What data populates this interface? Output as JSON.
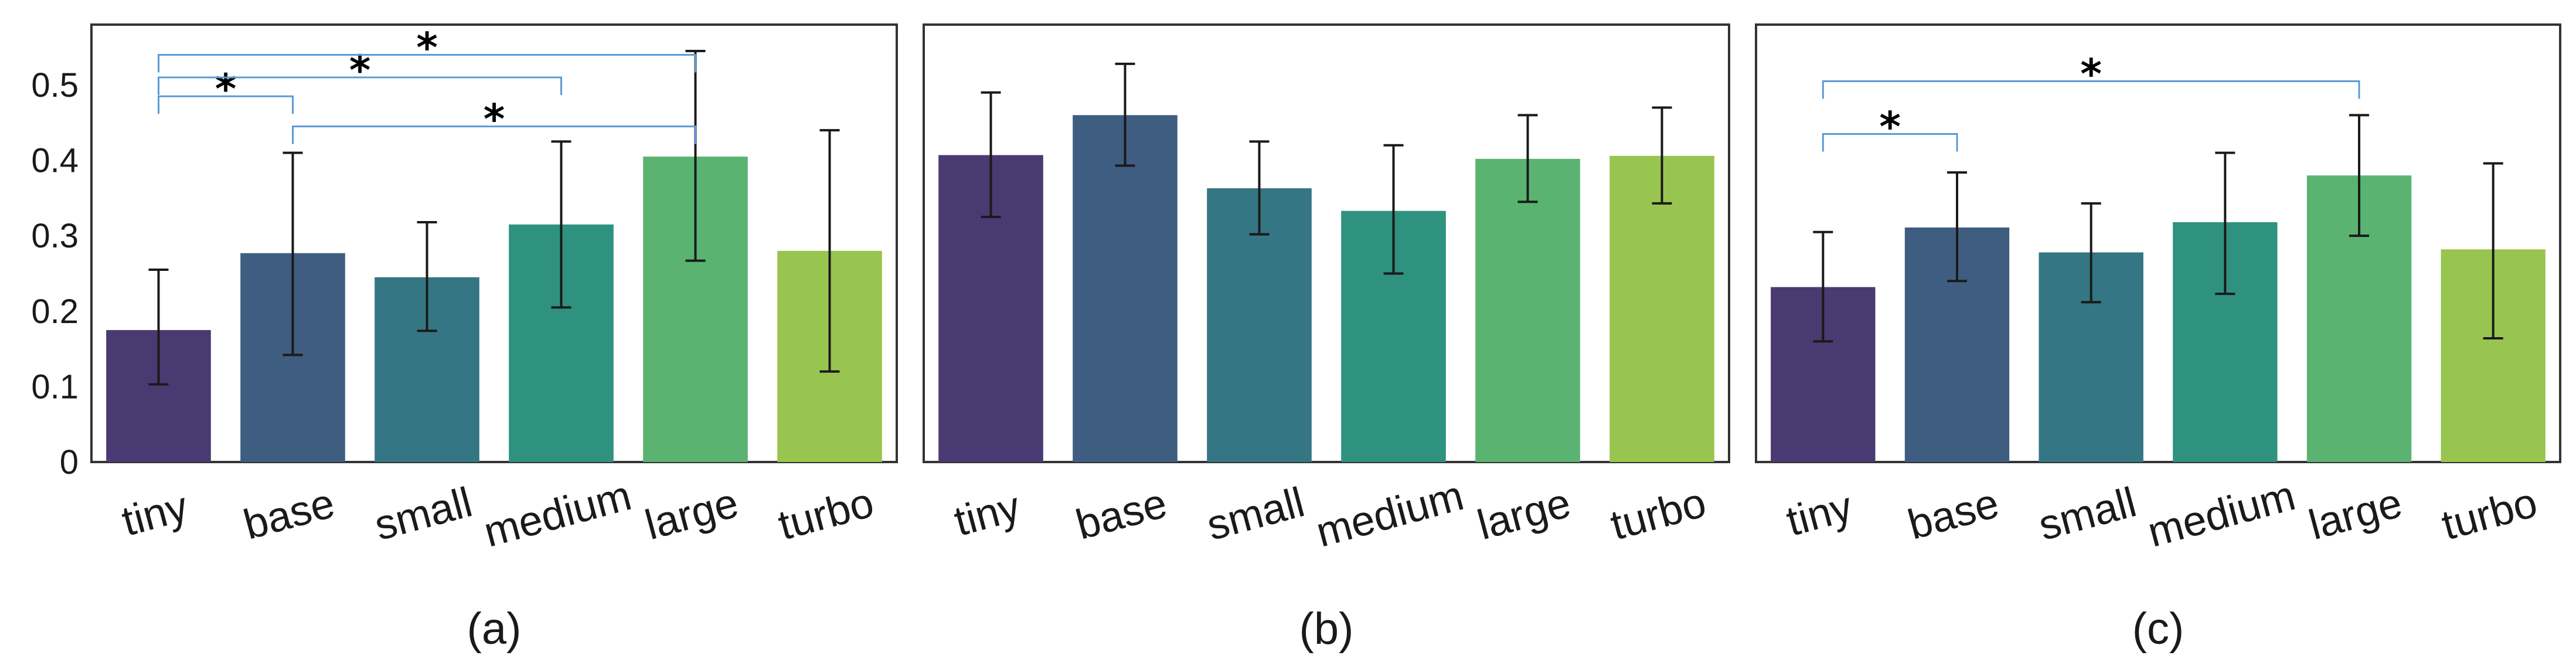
{
  "chart_data": [
    {
      "type": "bar",
      "panel_label": "(a)",
      "categories": [
        "tiny",
        "base",
        "small",
        "medium",
        "large",
        "turbo"
      ],
      "values": [
        0.175,
        0.277,
        0.245,
        0.315,
        0.405,
        0.28
      ],
      "errors_low": [
        0.103,
        0.142,
        0.174,
        0.205,
        0.267,
        0.12
      ],
      "errors_high": [
        0.255,
        0.41,
        0.318,
        0.425,
        0.545,
        0.44
      ],
      "ylim": [
        0,
        0.58
      ],
      "yticks": [
        0,
        0.1,
        0.2,
        0.3,
        0.4,
        0.5
      ],
      "ytick_labels": [
        "0",
        "0.1",
        "0.2",
        "0.3",
        "0.4",
        "0.5"
      ],
      "significance": [
        {
          "from": "tiny",
          "to": "base",
          "label": "*",
          "level": 0.485
        },
        {
          "from": "tiny",
          "to": "medium",
          "label": "*",
          "level": 0.51
        },
        {
          "from": "tiny",
          "to": "large",
          "label": "*",
          "level": 0.54
        },
        {
          "from": "base",
          "to": "large",
          "label": "*",
          "level": 0.445
        }
      ]
    },
    {
      "type": "bar",
      "panel_label": "(b)",
      "categories": [
        "tiny",
        "base",
        "small",
        "medium",
        "large",
        "turbo"
      ],
      "values": [
        0.407,
        0.46,
        0.363,
        0.333,
        0.402,
        0.406
      ],
      "errors_low": [
        0.325,
        0.393,
        0.302,
        0.25,
        0.345,
        0.343
      ],
      "errors_high": [
        0.49,
        0.528,
        0.425,
        0.42,
        0.46,
        0.47
      ],
      "ylim": [
        0,
        0.58
      ],
      "significance": []
    },
    {
      "type": "bar",
      "panel_label": "(c)",
      "categories": [
        "tiny",
        "base",
        "small",
        "medium",
        "large",
        "turbo"
      ],
      "values": [
        0.232,
        0.311,
        0.278,
        0.318,
        0.38,
        0.282
      ],
      "errors_low": [
        0.16,
        0.24,
        0.212,
        0.223,
        0.3,
        0.164
      ],
      "errors_high": [
        0.305,
        0.384,
        0.343,
        0.41,
        0.46,
        0.396
      ],
      "ylim": [
        0,
        0.58
      ],
      "significance": [
        {
          "from": "tiny",
          "to": "base",
          "label": "*",
          "level": 0.435
        },
        {
          "from": "tiny",
          "to": "large",
          "label": "*",
          "level": 0.505
        }
      ]
    }
  ],
  "colors": {
    "bars": [
      "#4a3a72",
      "#3f5d80",
      "#347683",
      "#2e927f",
      "#5ab370",
      "#98c54f"
    ],
    "frame": "#333333",
    "errorbar": "#1a1a1a",
    "bracket": "#5b9bd5",
    "text": "#1a1a1a"
  }
}
